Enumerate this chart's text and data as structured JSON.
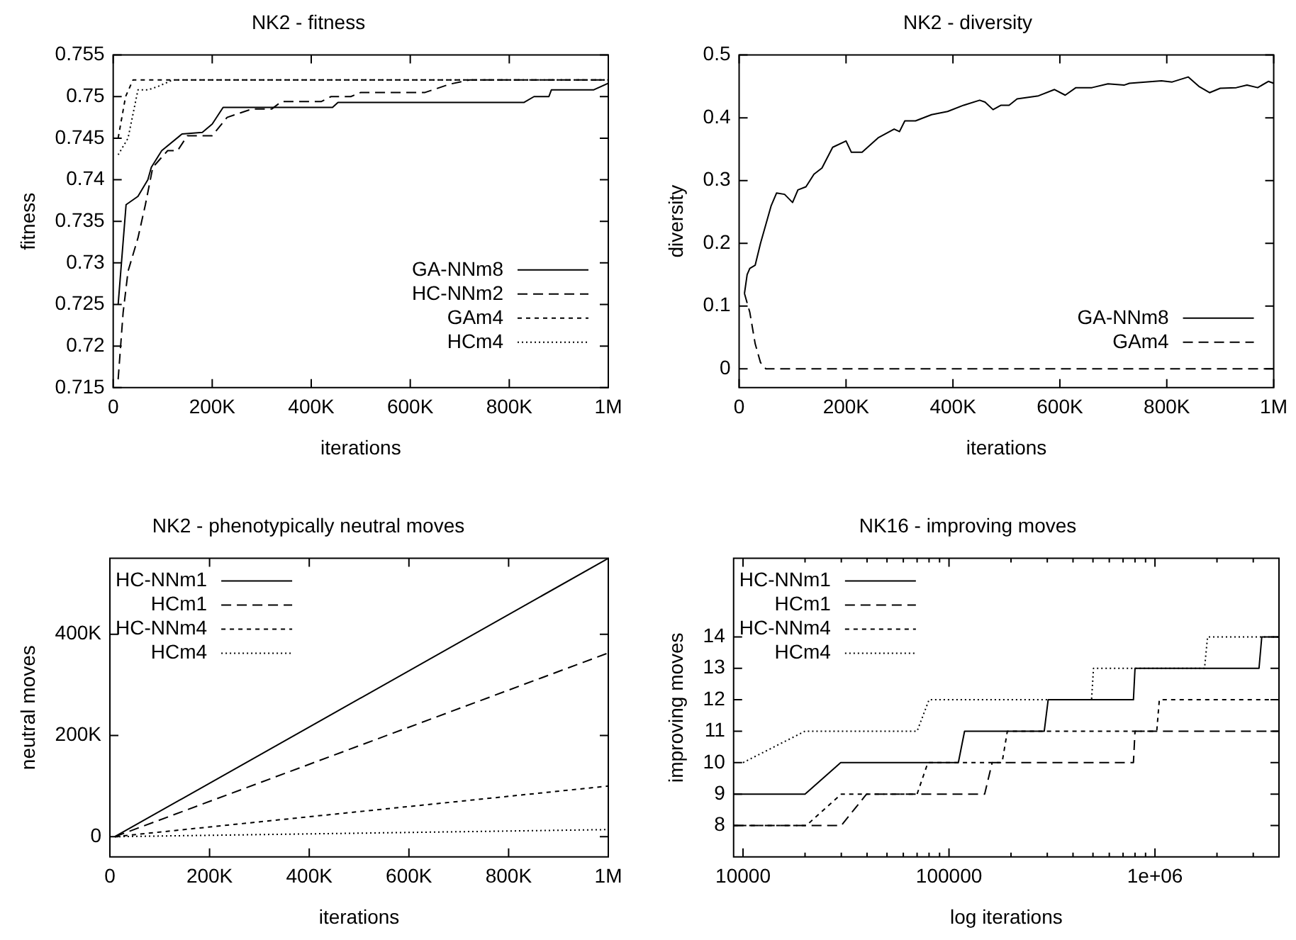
{
  "chart_data": [
    {
      "type": "line",
      "title": "NK2 - fitness",
      "xlabel": "iterations",
      "ylabel": "fitness",
      "xlim": [
        0,
        1000000
      ],
      "ylim": [
        0.715,
        0.755
      ],
      "xticks": [
        0,
        {
          "value": 200000,
          "label": "200K"
        },
        {
          "value": 400000,
          "label": "400K"
        },
        {
          "value": 600000,
          "label": "600K"
        },
        {
          "value": 800000,
          "label": "800K"
        },
        {
          "value": 1000000,
          "label": "1M"
        }
      ],
      "yticks": [
        0.715,
        0.72,
        0.725,
        0.73,
        0.735,
        0.74,
        0.745,
        0.75,
        0.755
      ],
      "legend": "bottom right",
      "marker": "none",
      "series": [
        {
          "name": "GA-NNm8",
          "color": "#000000",
          "line_style": "solid",
          "x": [
            10000,
            26000,
            50000,
            70000,
            77000,
            98000,
            139000,
            180000,
            200000,
            222000,
            443000,
            454000,
            830000,
            850000,
            880000,
            885000,
            970000,
            1000000
          ],
          "values": [
            0.725,
            0.737,
            0.738,
            0.74,
            0.7415,
            0.7435,
            0.7455,
            0.7457,
            0.7467,
            0.7487,
            0.7487,
            0.7493,
            0.7493,
            0.75,
            0.75,
            0.7508,
            0.7508,
            0.7516
          ]
        },
        {
          "name": "HC-NNm2",
          "color": "#000000",
          "line_style": "dashed",
          "x": [
            10000,
            20000,
            30000,
            50000,
            65000,
            80000,
            110000,
            130000,
            150000,
            200000,
            230000,
            280000,
            320000,
            340000,
            420000,
            440000,
            480000,
            500000,
            630000,
            680000,
            720000,
            1000000
          ],
          "values": [
            0.716,
            0.724,
            0.729,
            0.733,
            0.737,
            0.7415,
            0.7435,
            0.7435,
            0.7453,
            0.7453,
            0.7475,
            0.7485,
            0.7485,
            0.7494,
            0.7494,
            0.75,
            0.75,
            0.7505,
            0.7505,
            0.7515,
            0.752,
            0.752
          ]
        },
        {
          "name": "GAm4",
          "color": "#000000",
          "line_style": "dashed",
          "x": [
            10000,
            25000,
            40000,
            1000000
          ],
          "values": [
            0.745,
            0.75,
            0.752,
            0.752
          ]
        },
        {
          "name": "HCm4",
          "color": "#000000",
          "line_style": "dotted",
          "x": [
            10000,
            30000,
            50000,
            70000,
            90000,
            120000,
            1000000
          ],
          "values": [
            0.743,
            0.745,
            0.7508,
            0.7508,
            0.7512,
            0.752,
            0.752
          ]
        }
      ]
    },
    {
      "type": "line",
      "title": "NK2 - diversity",
      "xlabel": "iterations",
      "ylabel": "diversity",
      "xlim": [
        0,
        1000000
      ],
      "ylim": [
        -0.03,
        0.5
      ],
      "xticks": [
        0,
        {
          "value": 200000,
          "label": "200K"
        },
        {
          "value": 400000,
          "label": "400K"
        },
        {
          "value": 600000,
          "label": "600K"
        },
        {
          "value": 800000,
          "label": "800K"
        },
        {
          "value": 1000000,
          "label": "1M"
        }
      ],
      "yticks": [
        0,
        0.1,
        0.2,
        0.3,
        0.4,
        0.5
      ],
      "legend": "bottom right",
      "marker": "none",
      "series": [
        {
          "name": "GA-NNm8",
          "color": "#000000",
          "line_style": "solid",
          "x": [
            10000,
            15000,
            20000,
            30000,
            40000,
            60000,
            70000,
            85000,
            100000,
            110000,
            125000,
            140000,
            155000,
            175000,
            200000,
            210000,
            230000,
            260000,
            290000,
            300000,
            310000,
            330000,
            360000,
            390000,
            420000,
            450000,
            460000,
            475000,
            490000,
            505000,
            520000,
            560000,
            590000,
            610000,
            630000,
            660000,
            690000,
            720000,
            730000,
            760000,
            790000,
            810000,
            840000,
            860000,
            880000,
            900000,
            930000,
            950000,
            970000,
            990000,
            1000000
          ],
          "values": [
            0.12,
            0.15,
            0.16,
            0.165,
            0.2,
            0.26,
            0.28,
            0.278,
            0.265,
            0.285,
            0.29,
            0.31,
            0.32,
            0.353,
            0.363,
            0.345,
            0.345,
            0.368,
            0.382,
            0.378,
            0.395,
            0.395,
            0.405,
            0.41,
            0.42,
            0.428,
            0.425,
            0.413,
            0.42,
            0.42,
            0.43,
            0.435,
            0.445,
            0.436,
            0.448,
            0.448,
            0.454,
            0.452,
            0.455,
            0.457,
            0.459,
            0.457,
            0.465,
            0.45,
            0.44,
            0.447,
            0.448,
            0.452,
            0.448,
            0.458,
            0.455
          ]
        },
        {
          "name": "GAm4",
          "color": "#000000",
          "line_style": "dashed",
          "x": [
            10000,
            20000,
            30000,
            40000,
            50000,
            1000000
          ],
          "values": [
            0.12,
            0.09,
            0.04,
            0.01,
            0,
            0
          ]
        }
      ]
    },
    {
      "type": "line",
      "title": "NK2 - phenotypically neutral moves",
      "xlabel": "iterations",
      "ylabel": "neutral moves",
      "xlim": [
        0,
        1000000
      ],
      "ylim": [
        -40000,
        550000
      ],
      "xticks": [
        0,
        {
          "value": 200000,
          "label": "200K"
        },
        {
          "value": 400000,
          "label": "400K"
        },
        {
          "value": 600000,
          "label": "600K"
        },
        {
          "value": 800000,
          "label": "800K"
        },
        {
          "value": 1000000,
          "label": "1M"
        }
      ],
      "yticks": [
        0,
        {
          "value": 200000,
          "label": "200K"
        },
        {
          "value": 400000,
          "label": "400K"
        }
      ],
      "legend": "top left",
      "marker": "none",
      "series": [
        {
          "name": "HC-NNm1",
          "color": "#000000",
          "line_style": "solid",
          "x": [
            10000,
            1000000
          ],
          "values": [
            0,
            550000
          ]
        },
        {
          "name": "HCm1",
          "color": "#000000",
          "line_style": "dashed",
          "x": [
            10000,
            1000000
          ],
          "values": [
            0,
            363000
          ]
        },
        {
          "name": "HC-NNm4",
          "color": "#000000",
          "line_style": "dashed",
          "x": [
            10000,
            1000000
          ],
          "values": [
            0,
            100000
          ]
        },
        {
          "name": "HCm4",
          "color": "#000000",
          "line_style": "dotted",
          "x": [
            10000,
            1000000
          ],
          "values": [
            0,
            14000
          ]
        }
      ]
    },
    {
      "type": "line",
      "title": "NK16 - improving moves",
      "xlabel": "log iterations",
      "ylabel": "improving moves",
      "log": "x",
      "xlim": [
        9000,
        4000000
      ],
      "ylim": [
        7,
        16.5
      ],
      "xticks": [
        10000,
        {
          "value": 20000,
          "label": null
        },
        {
          "value": 30000,
          "label": null
        },
        {
          "value": 40000,
          "label": null
        },
        {
          "value": 50000,
          "label": null
        },
        {
          "value": 60000,
          "label": null
        },
        {
          "value": 70000,
          "label": null
        },
        {
          "value": 80000,
          "label": null
        },
        {
          "value": 90000,
          "label": null
        },
        100000,
        {
          "value": 200000,
          "label": null
        },
        {
          "value": 300000,
          "label": null
        },
        {
          "value": 400000,
          "label": null
        },
        {
          "value": 500000,
          "label": null
        },
        {
          "value": 600000,
          "label": null
        },
        {
          "value": 700000,
          "label": null
        },
        {
          "value": 800000,
          "label": null
        },
        {
          "value": 900000,
          "label": null
        },
        {
          "value": 1000000,
          "label": "1e+06"
        },
        {
          "value": 2000000,
          "label": null
        },
        {
          "value": 3000000,
          "label": null
        }
      ],
      "yticks": [
        8,
        9,
        10,
        11,
        12,
        13,
        14
      ],
      "legend": "top left",
      "marker": "none",
      "series": [
        {
          "name": "HC-NNm1",
          "color": "#000000",
          "line_style": "solid",
          "x": [
            9000,
            20000,
            29800,
            111000,
            119000,
            290000,
            303000,
            786000,
            800000,
            3200000,
            3300000,
            4000000
          ],
          "values": [
            9,
            9,
            10,
            10,
            11,
            11,
            12,
            12,
            13,
            13,
            14,
            14
          ]
        },
        {
          "name": "HCm1",
          "color": "#000000",
          "line_style": "dashed",
          "x": [
            9000,
            30000,
            39800,
            149000,
            162000,
            786000,
            800000,
            4000000
          ],
          "values": [
            8,
            8,
            9,
            9,
            10,
            10,
            11,
            11
          ]
        },
        {
          "name": "HC-NNm4",
          "color": "#000000",
          "line_style": "dashed",
          "x": [
            9000,
            20300,
            30000,
            70000,
            79000,
            181000,
            192000,
            1020000,
            1050000,
            4000000
          ],
          "values": [
            8,
            8,
            9,
            9,
            10,
            10,
            11,
            11,
            12,
            12
          ]
        },
        {
          "name": "HCm4",
          "color": "#000000",
          "line_style": "dotted",
          "x": [
            10000,
            20000,
            70000,
            80000,
            492000,
            503000,
            1740000,
            1800000,
            4000000
          ],
          "values": [
            10,
            11,
            11,
            12,
            12,
            13,
            13,
            14,
            14
          ]
        }
      ]
    }
  ]
}
